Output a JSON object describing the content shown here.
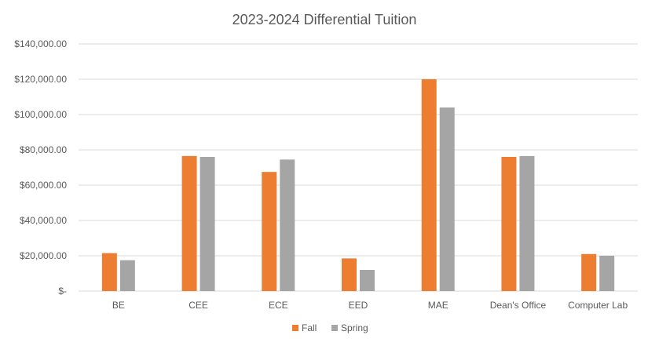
{
  "chart_data": {
    "type": "bar",
    "title": "2023-2024 Differential Tuition",
    "xlabel": "",
    "ylabel": "",
    "categories": [
      "BE",
      "CEE",
      "ECE",
      "EED",
      "MAE",
      "Dean's Office",
      "Computer Lab"
    ],
    "series": [
      {
        "name": "Fall",
        "color": "#ED7D31",
        "values": [
          21500,
          76500,
          67500,
          18500,
          120000,
          76000,
          21000
        ]
      },
      {
        "name": "Spring",
        "color": "#A5A5A5",
        "values": [
          17500,
          76000,
          74500,
          12000,
          104000,
          76500,
          20000
        ]
      }
    ],
    "ylim": [
      0,
      140000
    ],
    "yticks": [
      0,
      20000,
      40000,
      60000,
      80000,
      100000,
      120000,
      140000
    ],
    "ytick_labels": [
      "$-",
      "$20,000.00",
      "$40,000.00",
      "$60,000.00",
      "$80,000.00",
      "$100,000.00",
      "$120,000.00",
      "$140,000.00"
    ],
    "grid": true,
    "legend_position": "bottom"
  }
}
